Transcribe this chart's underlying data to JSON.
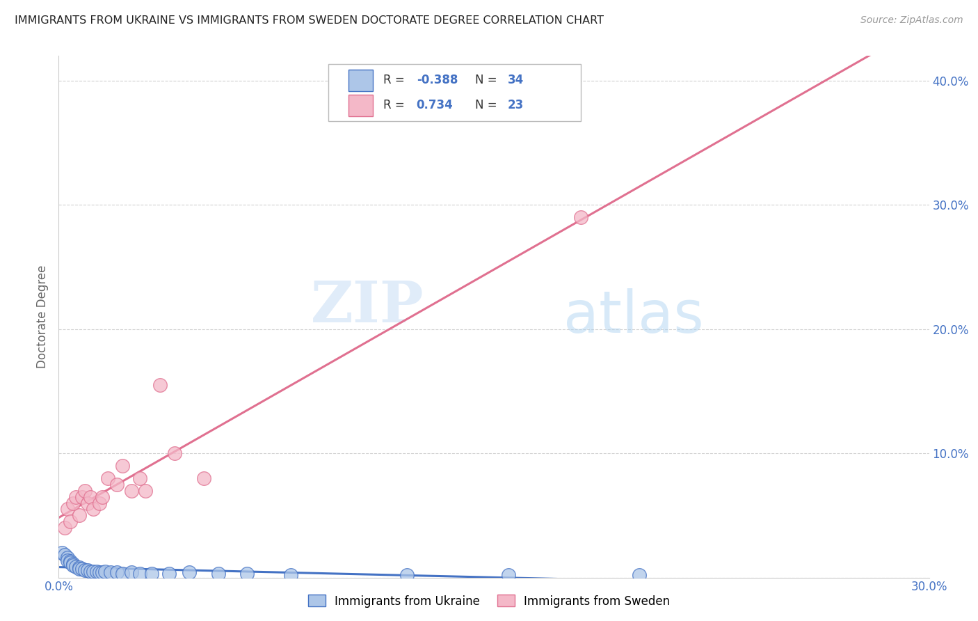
{
  "title": "IMMIGRANTS FROM UKRAINE VS IMMIGRANTS FROM SWEDEN DOCTORATE DEGREE CORRELATION CHART",
  "source": "Source: ZipAtlas.com",
  "ylabel": "Doctorate Degree",
  "xlim": [
    0.0,
    0.3
  ],
  "ylim": [
    0.0,
    0.42
  ],
  "xticks": [
    0.0,
    0.05,
    0.1,
    0.15,
    0.2,
    0.25,
    0.3
  ],
  "xtick_labels": [
    "0.0%",
    "",
    "",
    "",
    "",
    "",
    "30.0%"
  ],
  "yticks": [
    0.0,
    0.1,
    0.2,
    0.3,
    0.4
  ],
  "ytick_labels": [
    "",
    "10.0%",
    "20.0%",
    "30.0%",
    "40.0%"
  ],
  "legend_ukraine_label": "Immigrants from Ukraine",
  "legend_sweden_label": "Immigrants from Sweden",
  "R_ukraine": "-0.388",
  "N_ukraine": "34",
  "R_sweden": "0.734",
  "N_sweden": "23",
  "color_ukraine": "#adc6e8",
  "color_sweden": "#f4b8c8",
  "line_ukraine": "#4472c4",
  "line_sweden": "#e07090",
  "watermark_zip": "ZIP",
  "watermark_atlas": "atlas",
  "ukraine_x": [
    0.001,
    0.002,
    0.003,
    0.003,
    0.004,
    0.004,
    0.005,
    0.005,
    0.006,
    0.007,
    0.007,
    0.008,
    0.009,
    0.01,
    0.011,
    0.012,
    0.013,
    0.014,
    0.015,
    0.016,
    0.018,
    0.02,
    0.022,
    0.025,
    0.028,
    0.032,
    0.038,
    0.045,
    0.055,
    0.065,
    0.08,
    0.12,
    0.155,
    0.2
  ],
  "ukraine_y": [
    0.02,
    0.018,
    0.016,
    0.014,
    0.013,
    0.012,
    0.011,
    0.01,
    0.009,
    0.008,
    0.007,
    0.007,
    0.006,
    0.006,
    0.005,
    0.005,
    0.005,
    0.004,
    0.004,
    0.005,
    0.004,
    0.004,
    0.003,
    0.004,
    0.003,
    0.003,
    0.003,
    0.004,
    0.003,
    0.003,
    0.002,
    0.002,
    0.002,
    0.002
  ],
  "sweden_x": [
    0.002,
    0.003,
    0.004,
    0.005,
    0.006,
    0.007,
    0.008,
    0.009,
    0.01,
    0.011,
    0.012,
    0.014,
    0.015,
    0.017,
    0.02,
    0.022,
    0.025,
    0.028,
    0.03,
    0.035,
    0.04,
    0.05,
    0.18
  ],
  "sweden_y": [
    0.04,
    0.055,
    0.045,
    0.06,
    0.065,
    0.05,
    0.065,
    0.07,
    0.06,
    0.065,
    0.055,
    0.06,
    0.065,
    0.08,
    0.075,
    0.09,
    0.07,
    0.08,
    0.07,
    0.155,
    0.1,
    0.08,
    0.29
  ],
  "ukraine_line_x": [
    0.0,
    0.22
  ],
  "sweden_line_x": [
    0.0,
    0.3
  ]
}
